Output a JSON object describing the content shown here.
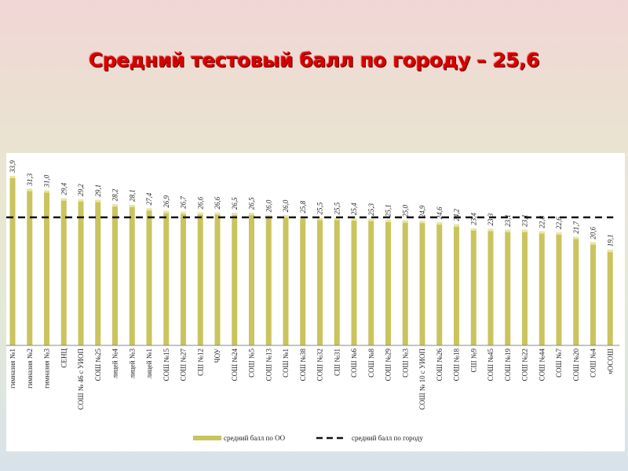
{
  "title": "Средний тестовый балл по городу – 25,6",
  "chart_data": {
    "type": "bar",
    "title": "Средний тестовый балл по городу – 25,6",
    "categories": [
      "гимназия №1",
      "гимназия №2",
      "гимназия №3",
      "СЕНЦ",
      "СОШ № 46 с УИОП",
      "СОШ №25",
      "лицей №4",
      "лицей №3",
      "лицей №1",
      "СОШ №15",
      "СОШ №27",
      "СШ №12",
      "ЧОУ",
      "СОШ №24",
      "СОШ №5",
      "СОШ №13",
      "СОШ №1",
      "СОШ №38",
      "СОШ №32",
      "СШ №31",
      "СОШ №6",
      "СОШ №8",
      "СОШ №29",
      "СОШ №3",
      "СОШ № 10 с УИОП",
      "СОШ №26",
      "СОШ №18",
      "СШ №9",
      "СОШ №45",
      "СОШ №19",
      "СОШ №22",
      "СОШ №44",
      "СОШ №7",
      "СОШ №20",
      "СОШ №4",
      "чОСОШ"
    ],
    "values": [
      33.9,
      31.3,
      31.0,
      29.4,
      29.2,
      29.1,
      28.2,
      28.1,
      27.4,
      26.9,
      26.7,
      26.6,
      26.6,
      26.5,
      26.5,
      26.0,
      26.0,
      25.8,
      25.5,
      25.5,
      25.4,
      25.3,
      25.1,
      25.0,
      24.9,
      24.6,
      24.2,
      23.4,
      23.3,
      23.1,
      23.1,
      22.8,
      22.6,
      21.7,
      20.6,
      19.1
    ],
    "value_labels": [
      "33,9",
      "31,3",
      "31,0",
      "29,4",
      "29,2",
      "29,1",
      "28,2",
      "28,1",
      "27,4",
      "26,9",
      "26,7",
      "26,6",
      "26,6",
      "26,5",
      "26,5",
      "26,0",
      "26,0",
      "25,8",
      "25,5",
      "25,5",
      "25,4",
      "25,3",
      "25,1",
      "25,0",
      "24,9",
      "24,6",
      "24,2",
      "23,4",
      "23,3",
      "23,1",
      "23,1",
      "22,8",
      "22,6",
      "21,7",
      "20,6",
      "19,1"
    ],
    "series": [
      {
        "name": "средний балл по ОО",
        "color": "#c9c45e"
      },
      {
        "name": "средний балл по городу",
        "value": 25.6,
        "color": "#111111",
        "style": "dashed"
      }
    ],
    "ylim": [
      0,
      35
    ],
    "grid": false,
    "legend": "bottom"
  }
}
